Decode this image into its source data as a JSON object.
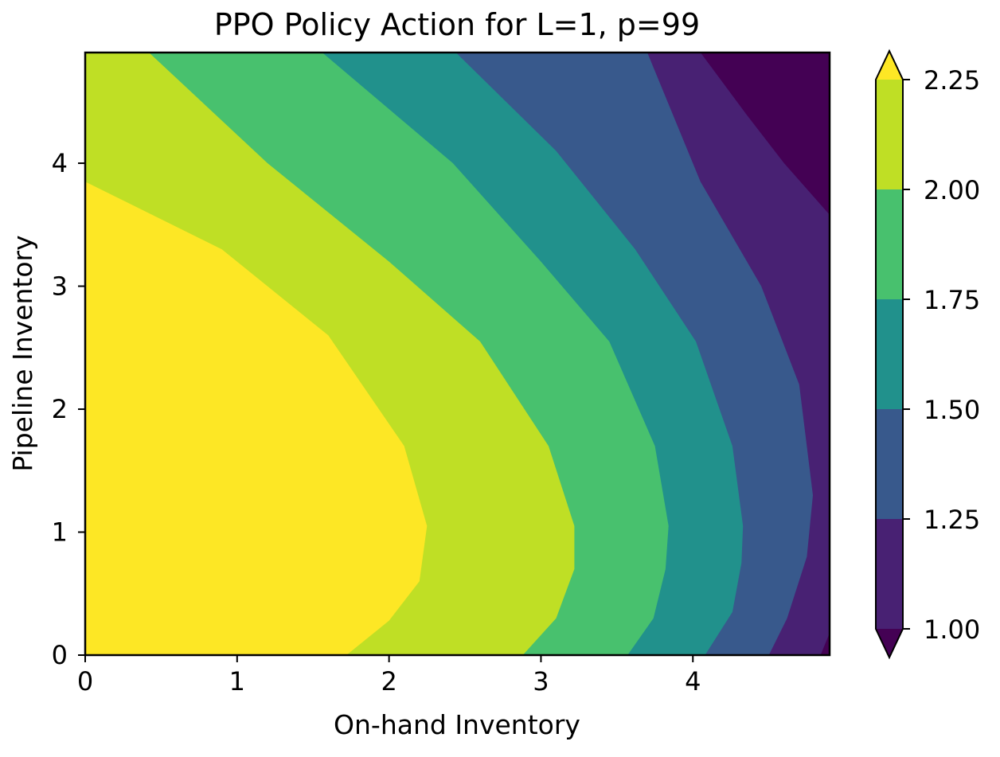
{
  "chart_data": {
    "type": "contour",
    "title": "PPO Policy Action for L=1, p=99",
    "xlabel": "On-hand Inventory",
    "ylabel": "Pipeline Inventory",
    "xlim": [
      0,
      4.9
    ],
    "ylim": [
      0,
      4.9
    ],
    "x_ticks": [
      0,
      1,
      2,
      3,
      4
    ],
    "y_ticks": [
      0,
      1,
      2,
      3,
      4
    ],
    "grid": false,
    "colorbar": {
      "levels": [
        1.0,
        1.25,
        1.5,
        1.75,
        2.0,
        2.25
      ],
      "tick_labels": [
        "1.00",
        "1.25",
        "1.50",
        "1.75",
        "2.00",
        "2.25"
      ],
      "extend": "both",
      "under_color": "#440154",
      "over_color": "#fde725",
      "band_colors": [
        "#482173",
        "#38598c",
        "#21918c",
        "#48c16e",
        "#bfdf25"
      ]
    },
    "contour_boundaries": [
      {
        "level": 2.25,
        "points": [
          [
            1.72,
            0.0
          ],
          [
            2.0,
            0.28
          ],
          [
            2.2,
            0.6
          ],
          [
            2.25,
            1.05
          ],
          [
            2.1,
            1.7
          ],
          [
            1.6,
            2.6
          ],
          [
            0.9,
            3.3
          ],
          [
            0.0,
            3.85
          ]
        ]
      },
      {
        "level": 2.0,
        "points": [
          [
            2.88,
            0.0
          ],
          [
            3.1,
            0.3
          ],
          [
            3.22,
            0.7
          ],
          [
            3.22,
            1.05
          ],
          [
            3.05,
            1.7
          ],
          [
            2.6,
            2.55
          ],
          [
            2.0,
            3.2
          ],
          [
            1.2,
            4.0
          ],
          [
            0.42,
            4.9
          ]
        ]
      },
      {
        "level": 1.75,
        "points": [
          [
            3.57,
            0.0
          ],
          [
            3.74,
            0.3
          ],
          [
            3.82,
            0.7
          ],
          [
            3.84,
            1.05
          ],
          [
            3.75,
            1.7
          ],
          [
            3.45,
            2.55
          ],
          [
            3.0,
            3.2
          ],
          [
            2.42,
            4.0
          ],
          [
            1.56,
            4.9
          ]
        ]
      },
      {
        "level": 1.5,
        "points": [
          [
            4.08,
            0.0
          ],
          [
            4.26,
            0.35
          ],
          [
            4.32,
            0.75
          ],
          [
            4.33,
            1.05
          ],
          [
            4.26,
            1.7
          ],
          [
            4.02,
            2.55
          ],
          [
            3.62,
            3.3
          ],
          [
            3.1,
            4.1
          ],
          [
            2.44,
            4.9
          ]
        ]
      },
      {
        "level": 1.25,
        "points": [
          [
            4.5,
            0.0
          ],
          [
            4.62,
            0.3
          ],
          [
            4.75,
            0.8
          ],
          [
            4.79,
            1.3
          ],
          [
            4.7,
            2.2
          ],
          [
            4.45,
            3.0
          ],
          [
            4.05,
            3.85
          ],
          [
            3.7,
            4.9
          ]
        ]
      },
      {
        "level": 1.0,
        "points": [
          [
            4.9,
            3.58
          ],
          [
            4.6,
            4.0
          ],
          [
            4.35,
            4.4
          ],
          [
            4.05,
            4.9
          ]
        ]
      },
      {
        "level": 1.0,
        "points": [
          [
            4.84,
            0.0
          ],
          [
            4.9,
            0.0
          ],
          [
            4.9,
            0.18
          ]
        ]
      }
    ]
  }
}
